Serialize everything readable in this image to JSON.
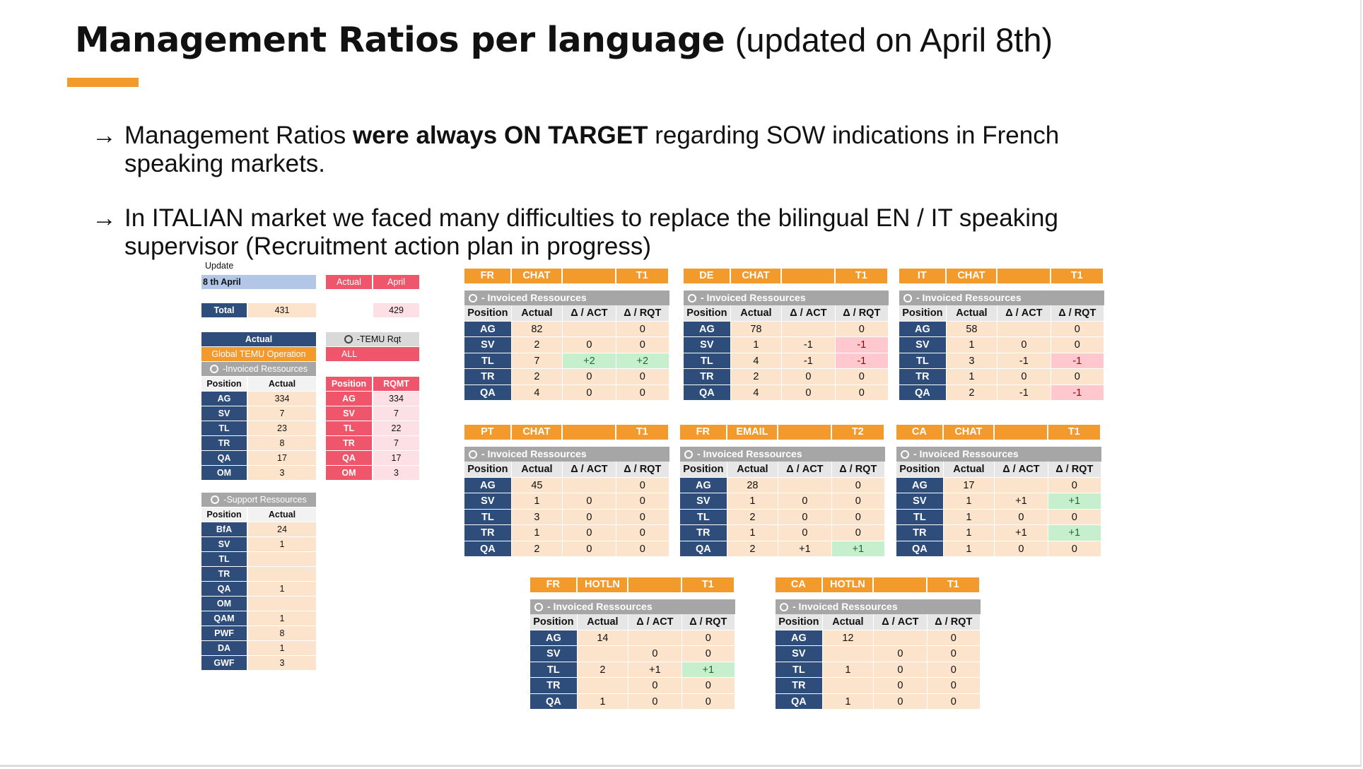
{
  "title": {
    "main": "Management Ratios per language",
    "sub": "(updated on April 8th)"
  },
  "bullets": [
    {
      "arrow": "→",
      "pre": "Management Ratios ",
      "bold": "were always ON TARGET",
      "post": " regarding SOW indications in French speaking markets."
    },
    {
      "arrow": "→",
      "pre": "In ITALIAN market we faced many difficulties to replace the bilingual EN / IT speaking supervisor (Recruitment action plan in progress)",
      "bold": "",
      "post": ""
    }
  ],
  "summary": {
    "update_label": "Update",
    "update_value": "8 th April",
    "actual_hdr": "Actual",
    "april_hdr": "April",
    "total_label": "Total",
    "total_actual": "431",
    "total_april": "429",
    "actual_label": "Actual",
    "global_label": "Global TEMU Operation",
    "invoiced_label": "-Invoiced Ressources",
    "temu_rqt_label": "-TEMU Rqt",
    "all_label": "ALL",
    "pos_hdr": "Position",
    "actual_col": "Actual",
    "rqmt_hdr": "RQMT",
    "left_rows": [
      {
        "pos": "AG",
        "actual": "334",
        "rqmt": "334"
      },
      {
        "pos": "SV",
        "actual": "7",
        "rqmt": "7"
      },
      {
        "pos": "TL",
        "actual": "23",
        "rqmt": "22"
      },
      {
        "pos": "TR",
        "actual": "8",
        "rqmt": "7"
      },
      {
        "pos": "QA",
        "actual": "17",
        "rqmt": "17"
      },
      {
        "pos": "OM",
        "actual": "3",
        "rqmt": "3"
      }
    ],
    "support_label": "-Support Ressources",
    "support_rows": [
      {
        "pos": "BfA",
        "actual": "24"
      },
      {
        "pos": "SV",
        "actual": "1"
      },
      {
        "pos": "TL",
        "actual": ""
      },
      {
        "pos": "TR",
        "actual": ""
      },
      {
        "pos": "QA",
        "actual": "1"
      },
      {
        "pos": "OM",
        "actual": ""
      },
      {
        "pos": "QAM",
        "actual": "1"
      },
      {
        "pos": "PWF",
        "actual": "8"
      },
      {
        "pos": "DA",
        "actual": "1"
      },
      {
        "pos": "GWF",
        "actual": "3"
      }
    ]
  },
  "lang_tables": [
    {
      "lang": "FR",
      "channel": "CHAT",
      "tier": "T1",
      "sub": "- Invoiced Ressources",
      "hdr": [
        "Position",
        "Actual",
        "Δ / ACT",
        "Δ / RQT"
      ],
      "rows": [
        [
          "AG",
          "82",
          "",
          "0"
        ],
        [
          "SV",
          "2",
          "0",
          "0"
        ],
        [
          "TL",
          "7",
          "+2",
          "+2"
        ],
        [
          "TR",
          "2",
          "0",
          "0"
        ],
        [
          "QA",
          "4",
          "0",
          "0"
        ]
      ]
    },
    {
      "lang": "DE",
      "channel": "CHAT",
      "tier": "T1",
      "sub": "- Invoiced Ressources",
      "hdr": [
        "Position",
        "Actual",
        "Δ / ACT",
        "Δ / RQT"
      ],
      "rows": [
        [
          "AG",
          "78",
          "",
          "0"
        ],
        [
          "SV",
          "1",
          "-1",
          "-1"
        ],
        [
          "TL",
          "4",
          "-1",
          "-1"
        ],
        [
          "TR",
          "2",
          "0",
          "0"
        ],
        [
          "QA",
          "4",
          "0",
          "0"
        ]
      ]
    },
    {
      "lang": "IT",
      "channel": "CHAT",
      "tier": "T1",
      "sub": "- Invoiced Ressources",
      "hdr": [
        "Position",
        "Actual",
        "Δ / ACT",
        "Δ / RQT"
      ],
      "rows": [
        [
          "AG",
          "58",
          "",
          "0"
        ],
        [
          "SV",
          "1",
          "0",
          "0"
        ],
        [
          "TL",
          "3",
          "-1",
          "-1"
        ],
        [
          "TR",
          "1",
          "0",
          "0"
        ],
        [
          "QA",
          "2",
          "-1",
          "-1"
        ]
      ]
    },
    {
      "lang": "PT",
      "channel": "CHAT",
      "tier": "T1",
      "sub": "- Invoiced Ressources",
      "hdr": [
        "Position",
        "Actual",
        "Δ / ACT",
        "Δ / RQT"
      ],
      "rows": [
        [
          "AG",
          "45",
          "",
          "0"
        ],
        [
          "SV",
          "1",
          "0",
          "0"
        ],
        [
          "TL",
          "3",
          "0",
          "0"
        ],
        [
          "TR",
          "1",
          "0",
          "0"
        ],
        [
          "QA",
          "2",
          "0",
          "0"
        ]
      ]
    },
    {
      "lang": "FR",
      "channel": "EMAIL",
      "tier": "T2",
      "sub": "- Invoiced Ressources",
      "hdr": [
        "Position",
        "Actual",
        "Δ / ACT",
        "Δ / RQT"
      ],
      "rows": [
        [
          "AG",
          "28",
          "",
          "0"
        ],
        [
          "SV",
          "1",
          "0",
          "0"
        ],
        [
          "TL",
          "2",
          "0",
          "0"
        ],
        [
          "TR",
          "1",
          "0",
          "0"
        ],
        [
          "QA",
          "2",
          "+1",
          "+1"
        ]
      ]
    },
    {
      "lang": "CA",
      "channel": "CHAT",
      "tier": "T1",
      "sub": "- Invoiced Ressources",
      "hdr": [
        "Position",
        "Actual",
        "Δ / ACT",
        "Δ / RQT"
      ],
      "rows": [
        [
          "AG",
          "17",
          "",
          "0"
        ],
        [
          "SV",
          "1",
          "+1",
          "+1"
        ],
        [
          "TL",
          "1",
          "0",
          "0"
        ],
        [
          "TR",
          "1",
          "+1",
          "+1"
        ],
        [
          "QA",
          "1",
          "0",
          "0"
        ]
      ]
    },
    {
      "lang": "FR",
      "channel": "HOTLN",
      "tier": "T1",
      "sub": "- Invoiced Ressources",
      "hdr": [
        "Position",
        "Actual",
        "Δ / ACT",
        "Δ / RQT"
      ],
      "rows": [
        [
          "AG",
          "14",
          "",
          "0"
        ],
        [
          "SV",
          "",
          "0",
          "0"
        ],
        [
          "TL",
          "2",
          "+1",
          "+1"
        ],
        [
          "TR",
          "",
          "0",
          "0"
        ],
        [
          "QA",
          "1",
          "0",
          "0"
        ]
      ]
    },
    {
      "lang": "CA",
      "channel": "HOTLN",
      "tier": "T1",
      "sub": "- Invoiced Ressources",
      "hdr": [
        "Position",
        "Actual",
        "Δ / ACT",
        "Δ / RQT"
      ],
      "rows": [
        [
          "AG",
          "12",
          "",
          "0"
        ],
        [
          "SV",
          "",
          "0",
          "0"
        ],
        [
          "TL",
          "1",
          "0",
          "0"
        ],
        [
          "TR",
          "",
          "0",
          "0"
        ],
        [
          "QA",
          "1",
          "0",
          "0"
        ]
      ]
    }
  ]
}
